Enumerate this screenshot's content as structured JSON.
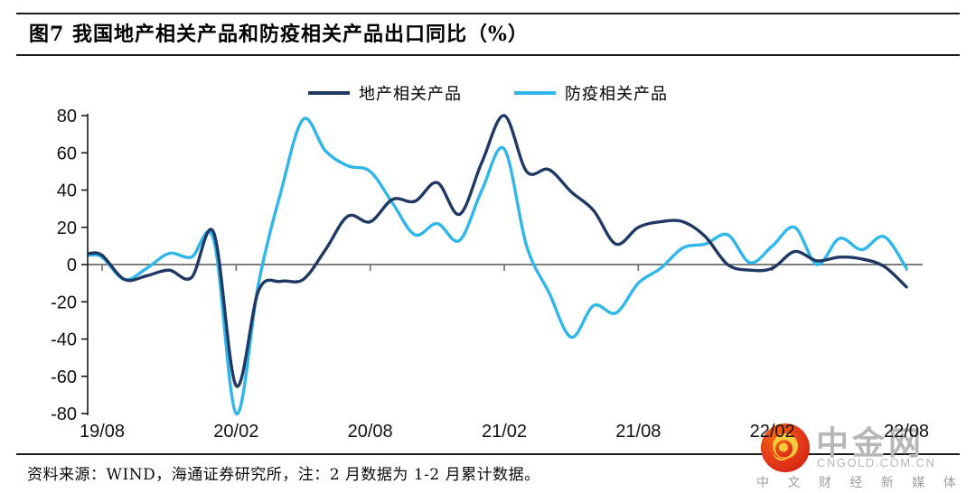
{
  "header": {
    "title": "图7  我国地产相关产品和防疫相关产品出口同比（%）"
  },
  "legend": [
    {
      "label": "地产相关产品",
      "color": "#1F3864"
    },
    {
      "label": "防疫相关产品",
      "color": "#2FB7EB"
    }
  ],
  "footer": {
    "source_note": "资料来源：WIND，海通证券研究所，注：2 月数据为 1-2 月累计数据。"
  },
  "watermark": {
    "name": "中金网",
    "domain": "CNGOLD.COM.CN",
    "tagline": "中 文 财 经 新 媒 体",
    "brand_red": "#E4391A",
    "brand_orange": "#F2690F",
    "brand_gold": "#FFC93E",
    "gray": "#B6B7B9"
  },
  "chart_data": {
    "type": "line",
    "title": "我国地产相关产品和防疫相关产品出口同比（%）",
    "x": [
      "19/08",
      "19/09",
      "19/10",
      "19/11",
      "19/12",
      "20/01",
      "20/02",
      "20/03",
      "20/04",
      "20/05",
      "20/06",
      "20/07",
      "20/08",
      "20/09",
      "20/10",
      "20/11",
      "20/12",
      "21/01",
      "21/02",
      "21/03",
      "21/04",
      "21/05",
      "21/06",
      "21/07",
      "21/08",
      "21/09",
      "21/10",
      "21/11",
      "21/12",
      "22/01",
      "22/02",
      "22/03",
      "22/04",
      "22/05",
      "22/06",
      "22/07",
      "22/08"
    ],
    "series": [
      {
        "name": "地产相关产品",
        "color": "#1F3864",
        "values": [
          5,
          -8,
          -6,
          -3,
          -7,
          17,
          -65,
          -14,
          -9,
          -8,
          8,
          26,
          23,
          35,
          34,
          44,
          27,
          55,
          80,
          50,
          51,
          39,
          29,
          11,
          20,
          23,
          23,
          15,
          0,
          -3,
          -2,
          7,
          2,
          4,
          3,
          -1,
          -12
        ]
      },
      {
        "name": "防疫相关产品",
        "color": "#2FB7EB",
        "values": [
          4,
          -8,
          -2,
          6,
          4,
          13,
          -80,
          -10,
          39,
          78,
          61,
          53,
          50,
          33,
          16,
          22,
          13,
          40,
          62,
          10,
          -15,
          -39,
          -22,
          -26,
          -10,
          -2,
          9,
          11,
          16,
          1,
          10,
          20,
          0,
          14,
          8,
          15,
          -2
        ]
      }
    ],
    "ylim": [
      -80,
      80
    ],
    "ytick_interval": 20,
    "yticks": [
      80,
      60,
      40,
      20,
      0,
      -20,
      -40,
      -60,
      -80
    ],
    "xticks": [
      "19/08",
      "20/02",
      "20/08",
      "21/02",
      "21/08",
      "22/02",
      "22/08"
    ],
    "xlabel": "",
    "ylabel": "",
    "grid": false,
    "legend_position": "top-center",
    "zeroline_color": "#6b6b6b",
    "axis_color": "#1a1a1a",
    "note": "2月数据为1-2月累计数据"
  }
}
